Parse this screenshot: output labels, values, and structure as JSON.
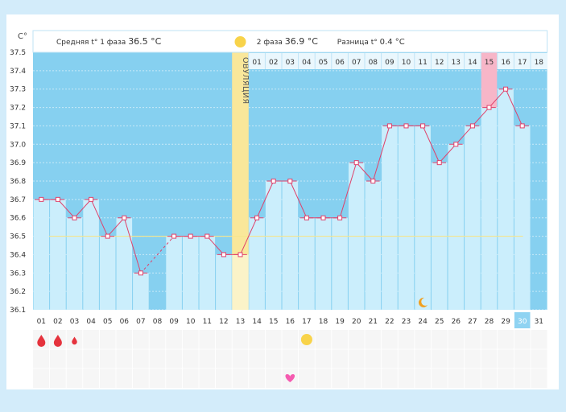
{
  "header": {
    "unit_label": "C°",
    "phase1_label": "Средняя t° 1 фаза",
    "phase1_value": "36.5 °C",
    "phase2_label": "2 фаза",
    "phase2_value": "36.9 °C",
    "diff_label": "Разница t°",
    "diff_value": "0.4 °C"
  },
  "ovulation_label": "ОВУЛЯЦИЯ",
  "colors": {
    "band": "#86d0f0",
    "bar": "#cbeefc",
    "line": "#e0406a",
    "ovulation": "#f9e79a",
    "pink": "#f7b6c8",
    "highlight": "#8fd3f2"
  },
  "chart_data": {
    "type": "line",
    "y_ticks": [
      "37.5",
      "37.4",
      "37.3",
      "37.2",
      "37.1",
      "37.0",
      "36.9",
      "36.8",
      "36.7",
      "36.6",
      "36.5",
      "36.4",
      "36.3",
      "36.2",
      "36.1"
    ],
    "ylim": [
      36.1,
      37.5
    ],
    "x": [
      "01",
      "02",
      "03",
      "04",
      "05",
      "06",
      "07",
      "08",
      "09",
      "10",
      "11",
      "12",
      "13",
      "14",
      "15",
      "16",
      "17",
      "18",
      "19",
      "20",
      "21",
      "22",
      "23",
      "24",
      "25",
      "26",
      "27",
      "28",
      "29",
      "30",
      "31"
    ],
    "values": [
      36.7,
      36.7,
      36.6,
      36.7,
      36.5,
      36.6,
      36.3,
      null,
      36.5,
      36.5,
      36.5,
      36.4,
      36.4,
      36.6,
      36.8,
      36.8,
      36.6,
      36.6,
      36.6,
      36.9,
      36.8,
      37.1,
      37.1,
      37.1,
      36.9,
      37.0,
      37.1,
      37.2,
      37.3,
      37.1,
      null
    ],
    "dashed_segment": [
      7,
      9
    ],
    "phase2_day_labels": [
      "01",
      "02",
      "03",
      "04",
      "05",
      "06",
      "07",
      "08",
      "09",
      "10",
      "11",
      "12",
      "13",
      "14",
      "15",
      "16",
      "17",
      "18"
    ],
    "ovulation_day": 13,
    "coverline": 36.5,
    "today": "30",
    "icons": [
      {
        "day": 1,
        "row": 1,
        "icon": "blood-drop-icon",
        "size": "large"
      },
      {
        "day": 2,
        "row": 1,
        "icon": "blood-drop-icon",
        "size": "large"
      },
      {
        "day": 3,
        "row": 1,
        "icon": "blood-drop-icon",
        "size": "small"
      },
      {
        "day": 17,
        "row": 1,
        "icon": "sun-icon"
      },
      {
        "day": 16,
        "row": 3,
        "icon": "heart-icon"
      },
      {
        "day": 24,
        "row": 0,
        "icon": "moon-icon"
      }
    ]
  }
}
